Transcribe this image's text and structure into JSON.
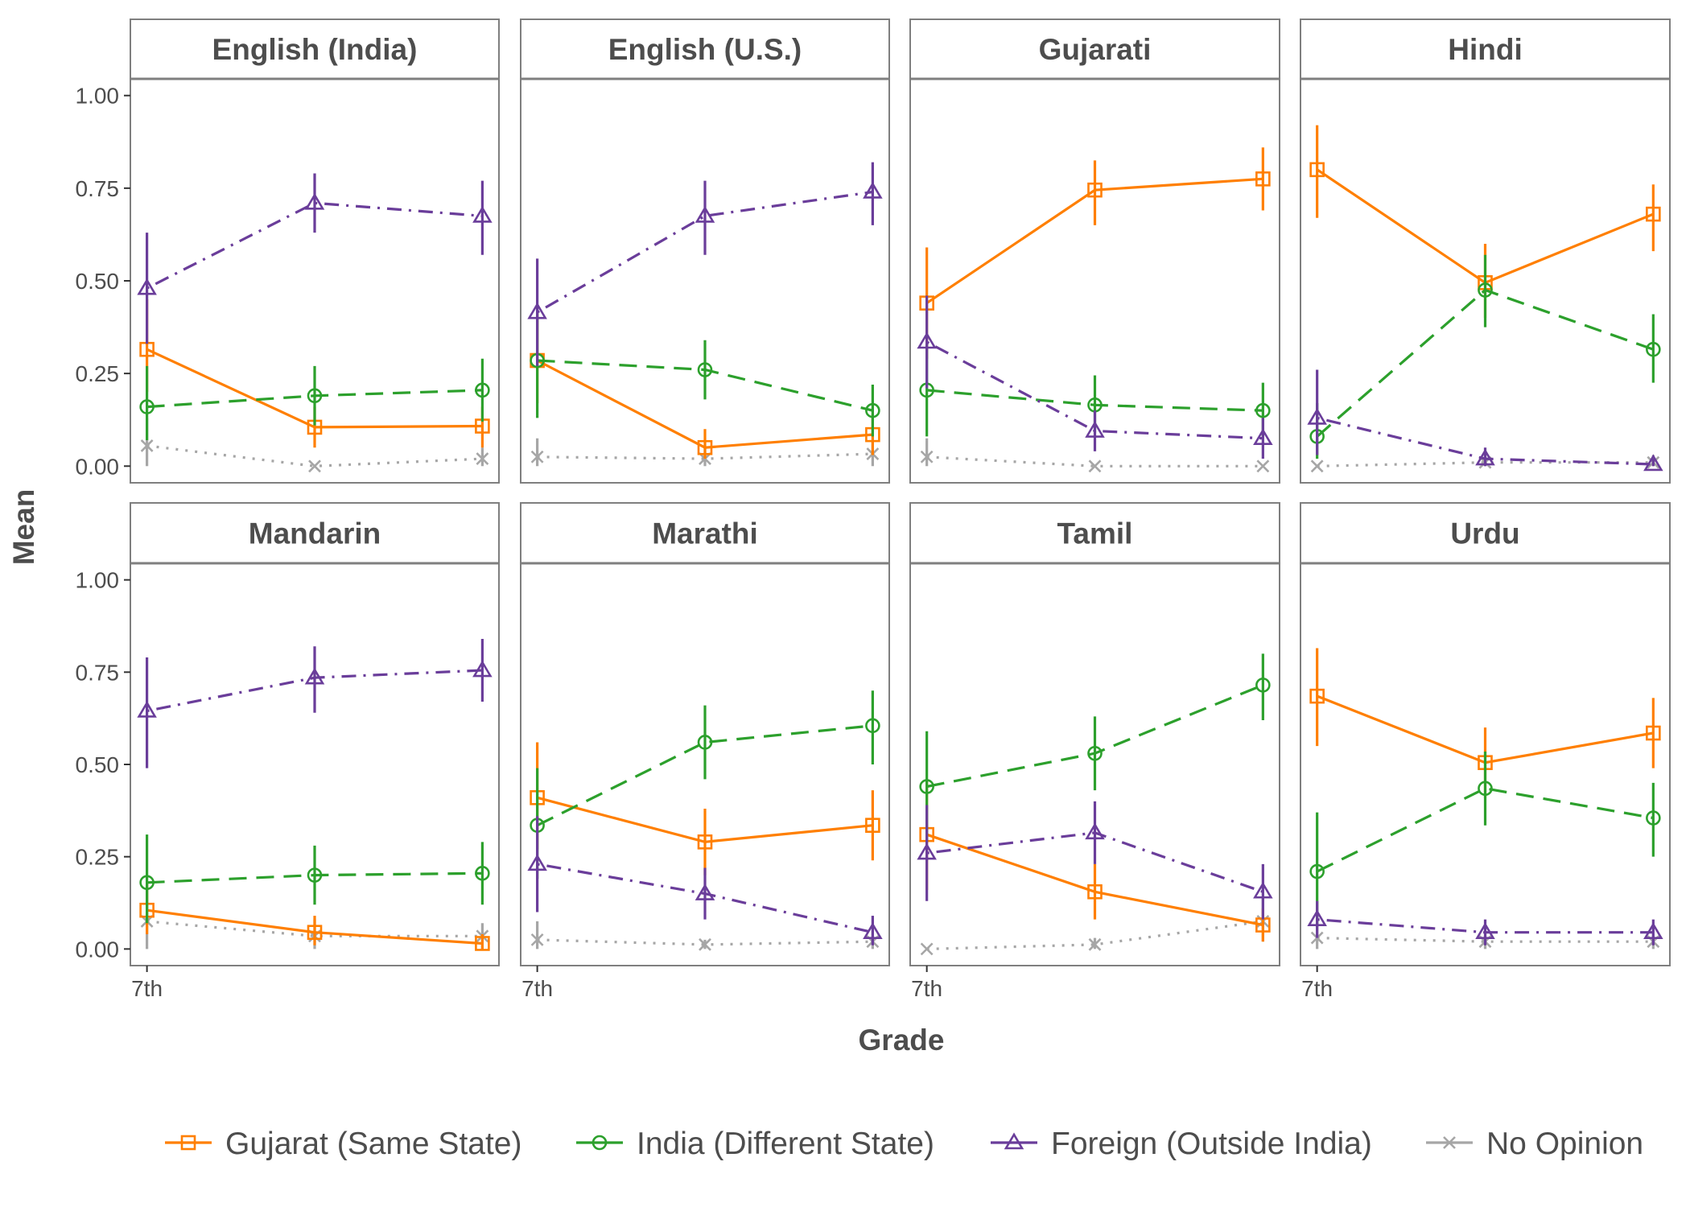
{
  "chart_data": {
    "type": "line",
    "ylabel": "Mean",
    "xlabel": "Grade",
    "x_tick_labels": [
      "7th",
      "",
      ""
    ],
    "ylim": [
      -0.045,
      1.045
    ],
    "y_ticks": [
      0,
      0.25,
      0.5,
      0.75,
      1.0
    ],
    "y_tick_labels": [
      "0.00",
      "0.25",
      "0.50",
      "0.75",
      "1.00"
    ],
    "legend_position": "bottom",
    "series_styles": [
      {
        "name": "Gujarat (Same State)",
        "color": "#ff7f00",
        "dash": "solid",
        "marker": "square"
      },
      {
        "name": "India (Different State)",
        "color": "#2ca02c",
        "dash": "longdash",
        "marker": "circle"
      },
      {
        "name": "Foreign (Outside India)",
        "color": "#6a3d9a",
        "dash": "dotdash",
        "marker": "triangle"
      },
      {
        "name": "No Opinion",
        "color": "#a6a6a6",
        "dash": "dotted",
        "marker": "x"
      }
    ],
    "panels": [
      {
        "title": "English (India)",
        "series": [
          {
            "name": "Gujarat (Same State)",
            "values": [
              0.315,
              0.105,
              0.108
            ],
            "lower": [
              0.2,
              0.05,
              0.05
            ],
            "upper": [
              0.45,
              0.16,
              0.16
            ]
          },
          {
            "name": "India (Different State)",
            "values": [
              0.16,
              0.19,
              0.205
            ],
            "lower": [
              0.07,
              0.11,
              0.12
            ],
            "upper": [
              0.27,
              0.27,
              0.29
            ]
          },
          {
            "name": "Foreign (Outside India)",
            "values": [
              0.48,
              0.71,
              0.675
            ],
            "lower": [
              0.33,
              0.63,
              0.57
            ],
            "upper": [
              0.63,
              0.79,
              0.77
            ]
          },
          {
            "name": "No Opinion",
            "values": [
              0.055,
              0.0,
              0.02
            ],
            "lower": [
              0.0,
              0.0,
              0.0
            ],
            "upper": [
              0.13,
              0.0,
              0.05
            ]
          }
        ]
      },
      {
        "title": "English (U.S.)",
        "series": [
          {
            "name": "Gujarat (Same State)",
            "values": [
              0.285,
              0.05,
              0.085
            ],
            "lower": [
              0.17,
              0.02,
              0.03
            ],
            "upper": [
              0.42,
              0.1,
              0.14
            ]
          },
          {
            "name": "India (Different State)",
            "values": [
              0.285,
              0.26,
              0.15
            ],
            "lower": [
              0.13,
              0.18,
              0.08
            ],
            "upper": [
              0.42,
              0.34,
              0.22
            ]
          },
          {
            "name": "Foreign (Outside India)",
            "values": [
              0.415,
              0.675,
              0.74
            ],
            "lower": [
              0.27,
              0.57,
              0.65
            ],
            "upper": [
              0.56,
              0.77,
              0.82
            ]
          },
          {
            "name": "No Opinion",
            "values": [
              0.025,
              0.02,
              0.033
            ],
            "lower": [
              0.0,
              0.0,
              0.0
            ],
            "upper": [
              0.075,
              0.05,
              0.07
            ]
          }
        ]
      },
      {
        "title": "Gujarati",
        "series": [
          {
            "name": "Gujarat (Same State)",
            "values": [
              0.44,
              0.745,
              0.775
            ],
            "lower": [
              0.29,
              0.65,
              0.69
            ],
            "upper": [
              0.59,
              0.825,
              0.86
            ]
          },
          {
            "name": "India (Different State)",
            "values": [
              0.205,
              0.165,
              0.15
            ],
            "lower": [
              0.08,
              0.09,
              0.08
            ],
            "upper": [
              0.33,
              0.245,
              0.225
            ]
          },
          {
            "name": "Foreign (Outside India)",
            "values": [
              0.335,
              0.095,
              0.075
            ],
            "lower": [
              0.21,
              0.04,
              0.02
            ],
            "upper": [
              0.46,
              0.15,
              0.13
            ]
          },
          {
            "name": "No Opinion",
            "values": [
              0.025,
              0.0,
              0.0
            ],
            "lower": [
              0.0,
              0.0,
              0.0
            ],
            "upper": [
              0.075,
              0.0,
              0.0
            ]
          }
        ]
      },
      {
        "title": "Hindi",
        "series": [
          {
            "name": "Gujarat (Same State)",
            "values": [
              0.8,
              0.495,
              0.68
            ],
            "lower": [
              0.67,
              0.4,
              0.58
            ],
            "upper": [
              0.92,
              0.6,
              0.76
            ]
          },
          {
            "name": "India (Different State)",
            "values": [
              0.08,
              0.475,
              0.315
            ],
            "lower": [
              0.02,
              0.375,
              0.225
            ],
            "upper": [
              0.17,
              0.57,
              0.41
            ]
          },
          {
            "name": "Foreign (Outside India)",
            "values": [
              0.13,
              0.02,
              0.005
            ],
            "lower": [
              0.03,
              0.0,
              0.0
            ],
            "upper": [
              0.26,
              0.05,
              0.02
            ]
          },
          {
            "name": "No Opinion",
            "values": [
              0.0,
              0.01,
              0.01
            ],
            "lower": [
              0.0,
              0.0,
              0.0
            ],
            "upper": [
              0.0,
              0.03,
              0.03
            ]
          }
        ]
      },
      {
        "title": "Mandarin",
        "series": [
          {
            "name": "Gujarat (Same State)",
            "values": [
              0.105,
              0.045,
              0.015
            ],
            "lower": [
              0.04,
              0.01,
              0.0
            ],
            "upper": [
              0.18,
              0.09,
              0.04
            ]
          },
          {
            "name": "India (Different State)",
            "values": [
              0.18,
              0.2,
              0.205
            ],
            "lower": [
              0.07,
              0.12,
              0.12
            ],
            "upper": [
              0.31,
              0.28,
              0.29
            ]
          },
          {
            "name": "Foreign (Outside India)",
            "values": [
              0.645,
              0.735,
              0.755
            ],
            "lower": [
              0.49,
              0.64,
              0.67
            ],
            "upper": [
              0.79,
              0.82,
              0.84
            ]
          },
          {
            "name": "No Opinion",
            "values": [
              0.075,
              0.035,
              0.035
            ],
            "lower": [
              0.0,
              0.0,
              0.0
            ],
            "upper": [
              0.17,
              0.08,
              0.07
            ]
          }
        ]
      },
      {
        "title": "Marathi",
        "series": [
          {
            "name": "Gujarat (Same State)",
            "values": [
              0.41,
              0.29,
              0.335
            ],
            "lower": [
              0.27,
              0.2,
              0.24
            ],
            "upper": [
              0.56,
              0.38,
              0.43
            ]
          },
          {
            "name": "India (Different State)",
            "values": [
              0.335,
              0.56,
              0.605
            ],
            "lower": [
              0.19,
              0.46,
              0.5
            ],
            "upper": [
              0.49,
              0.66,
              0.7
            ]
          },
          {
            "name": "Foreign (Outside India)",
            "values": [
              0.23,
              0.15,
              0.045
            ],
            "lower": [
              0.1,
              0.08,
              0.01
            ],
            "upper": [
              0.36,
              0.22,
              0.09
            ]
          },
          {
            "name": "No Opinion",
            "values": [
              0.025,
              0.012,
              0.02
            ],
            "lower": [
              0.0,
              0.0,
              0.0
            ],
            "upper": [
              0.075,
              0.025,
              0.05
            ]
          }
        ]
      },
      {
        "title": "Tamil",
        "series": [
          {
            "name": "Gujarat (Same State)",
            "values": [
              0.31,
              0.155,
              0.065
            ],
            "lower": [
              0.16,
              0.08,
              0.02
            ],
            "upper": [
              0.46,
              0.23,
              0.11
            ]
          },
          {
            "name": "India (Different State)",
            "values": [
              0.44,
              0.53,
              0.715
            ],
            "lower": [
              0.29,
              0.43,
              0.62
            ],
            "upper": [
              0.59,
              0.63,
              0.8
            ]
          },
          {
            "name": "Foreign (Outside India)",
            "values": [
              0.26,
              0.315,
              0.155
            ],
            "lower": [
              0.13,
              0.23,
              0.08
            ],
            "upper": [
              0.39,
              0.4,
              0.23
            ]
          },
          {
            "name": "No Opinion",
            "values": [
              0.0,
              0.012,
              0.075
            ],
            "lower": [
              0.0,
              0.0,
              0.02
            ],
            "upper": [
              0.0,
              0.03,
              0.14
            ]
          }
        ]
      },
      {
        "title": "Urdu",
        "series": [
          {
            "name": "Gujarat (Same State)",
            "values": [
              0.685,
              0.505,
              0.585
            ],
            "lower": [
              0.55,
              0.41,
              0.49
            ],
            "upper": [
              0.815,
              0.6,
              0.68
            ]
          },
          {
            "name": "India (Different State)",
            "values": [
              0.21,
              0.435,
              0.355
            ],
            "lower": [
              0.06,
              0.335,
              0.25
            ],
            "upper": [
              0.37,
              0.535,
              0.45
            ]
          },
          {
            "name": "Foreign (Outside India)",
            "values": [
              0.08,
              0.045,
              0.045
            ],
            "lower": [
              0.03,
              0.01,
              0.01
            ],
            "upper": [
              0.13,
              0.08,
              0.08
            ]
          },
          {
            "name": "No Opinion",
            "values": [
              0.03,
              0.02,
              0.02
            ],
            "lower": [
              0.0,
              0.0,
              0.0
            ],
            "upper": [
              0.06,
              0.04,
              0.04
            ]
          }
        ]
      }
    ]
  }
}
